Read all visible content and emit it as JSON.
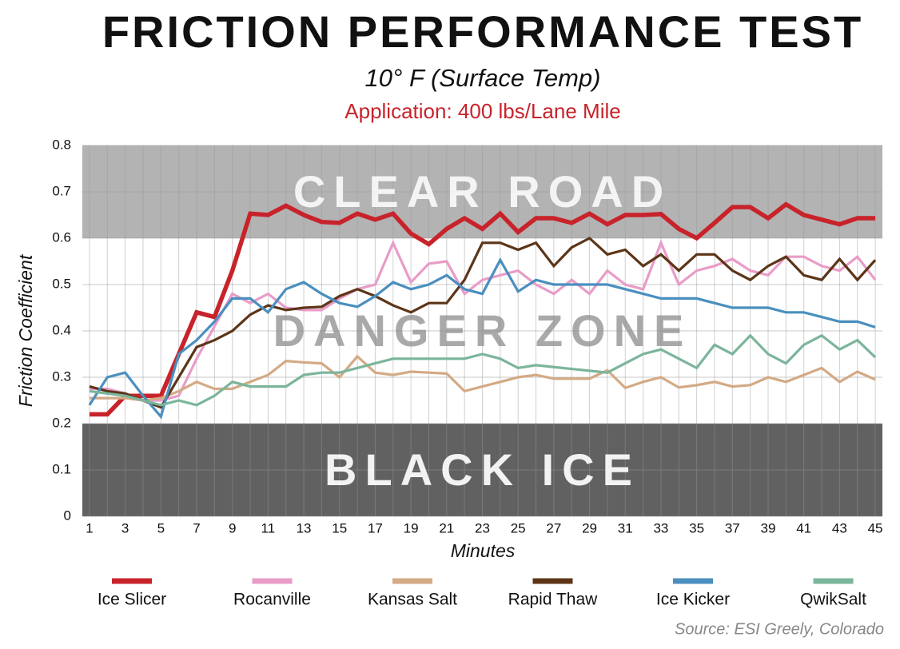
{
  "chart_data": {
    "type": "line",
    "title": "FRICTION PERFORMANCE TEST",
    "subtitle": "10° F (Surface Temp)",
    "annotation": "Application: 400 lbs/Lane Mile",
    "x_label": "Minutes",
    "y_label": "Friction Coefficient",
    "source": "Source: ESI Greely, Colorado",
    "x": [
      1,
      2,
      3,
      4,
      5,
      6,
      7,
      8,
      9,
      10,
      11,
      12,
      13,
      14,
      15,
      16,
      17,
      18,
      19,
      20,
      21,
      22,
      23,
      24,
      25,
      26,
      27,
      28,
      29,
      30,
      31,
      32,
      33,
      34,
      35,
      36,
      37,
      38,
      39,
      40,
      41,
      42,
      43,
      44,
      45
    ],
    "xlim": [
      0.6,
      45.4
    ],
    "xticks": [
      1,
      3,
      5,
      7,
      9,
      11,
      13,
      15,
      17,
      19,
      21,
      23,
      25,
      27,
      29,
      31,
      33,
      35,
      37,
      39,
      41,
      43,
      45
    ],
    "ylim": [
      0,
      0.8
    ],
    "yticks": [
      0,
      0.1,
      0.2,
      0.3,
      0.4,
      0.5,
      0.6,
      0.7,
      0.8
    ],
    "grid": true,
    "zones": [
      {
        "label": "CLEAR ROAD",
        "from": 0.6,
        "to": 0.8,
        "color": "#b3b3b3",
        "label_color": "rgba(255,255,255,0.85)"
      },
      {
        "label": "DANGER ZONE",
        "from": 0.2,
        "to": 0.6,
        "color": "#ffffff",
        "label_color": "rgba(140,140,140,0.75)"
      },
      {
        "label": "BLACK ICE",
        "from": 0,
        "to": 0.2,
        "color": "#616161",
        "label_color": "rgba(255,255,255,0.92)"
      }
    ],
    "series": [
      {
        "name": "Ice Slicer",
        "color": "#c8232b",
        "values": [
          0.22,
          0.22,
          0.26,
          0.26,
          0.26,
          0.35,
          0.44,
          0.43,
          0.53,
          0.653,
          0.65,
          0.67,
          0.65,
          0.635,
          0.633,
          0.653,
          0.64,
          0.653,
          0.61,
          0.587,
          0.62,
          0.643,
          0.62,
          0.653,
          0.613,
          0.643,
          0.643,
          0.633,
          0.653,
          0.63,
          0.65,
          0.65,
          0.652,
          0.62,
          0.6,
          0.633,
          0.667,
          0.667,
          0.643,
          0.673,
          0.65,
          0.64,
          0.63,
          0.643,
          0.643
        ]
      },
      {
        "name": "Rocanville",
        "color": "#e99cc8",
        "values": [
          0.275,
          0.275,
          0.265,
          0.25,
          0.25,
          0.26,
          0.34,
          0.41,
          0.48,
          0.46,
          0.48,
          0.45,
          0.445,
          0.445,
          0.47,
          0.49,
          0.5,
          0.59,
          0.505,
          0.545,
          0.55,
          0.48,
          0.51,
          0.52,
          0.53,
          0.5,
          0.48,
          0.51,
          0.48,
          0.53,
          0.5,
          0.49,
          0.59,
          0.5,
          0.53,
          0.54,
          0.555,
          0.53,
          0.52,
          0.56,
          0.56,
          0.54,
          0.53,
          0.56,
          0.51
        ]
      },
      {
        "name": "Kansas Salt",
        "color": "#d3aa86",
        "values": [
          0.255,
          0.255,
          0.255,
          0.25,
          0.255,
          0.27,
          0.29,
          0.275,
          0.275,
          0.29,
          0.305,
          0.335,
          0.332,
          0.33,
          0.3,
          0.345,
          0.31,
          0.305,
          0.312,
          0.31,
          0.308,
          0.27,
          0.28,
          0.29,
          0.3,
          0.305,
          0.297,
          0.297,
          0.297,
          0.315,
          0.277,
          0.29,
          0.3,
          0.278,
          0.283,
          0.29,
          0.28,
          0.283,
          0.3,
          0.29,
          0.305,
          0.32,
          0.29,
          0.312,
          0.295
        ]
      },
      {
        "name": "Rapid Thaw",
        "color": "#5c3518",
        "values": [
          0.28,
          0.27,
          0.265,
          0.25,
          0.235,
          0.3,
          0.365,
          0.38,
          0.4,
          0.435,
          0.455,
          0.445,
          0.45,
          0.452,
          0.475,
          0.49,
          0.475,
          0.455,
          0.44,
          0.46,
          0.46,
          0.51,
          0.59,
          0.59,
          0.575,
          0.59,
          0.54,
          0.58,
          0.6,
          0.565,
          0.575,
          0.54,
          0.565,
          0.53,
          0.565,
          0.565,
          0.53,
          0.51,
          0.54,
          0.56,
          0.52,
          0.51,
          0.555,
          0.51,
          0.553
        ]
      },
      {
        "name": "Ice Kicker",
        "color": "#4a8fbf",
        "values": [
          0.24,
          0.3,
          0.31,
          0.26,
          0.215,
          0.35,
          0.38,
          0.42,
          0.47,
          0.47,
          0.44,
          0.49,
          0.505,
          0.48,
          0.46,
          0.452,
          0.475,
          0.505,
          0.49,
          0.5,
          0.52,
          0.49,
          0.48,
          0.553,
          0.485,
          0.51,
          0.5,
          0.5,
          0.5,
          0.5,
          0.49,
          0.48,
          0.47,
          0.47,
          0.47,
          0.46,
          0.45,
          0.45,
          0.45,
          0.44,
          0.44,
          0.43,
          0.42,
          0.42,
          0.408
        ]
      },
      {
        "name": "QwikSalt",
        "color": "#7bb59b",
        "values": [
          0.27,
          0.265,
          0.26,
          0.25,
          0.24,
          0.25,
          0.24,
          0.26,
          0.29,
          0.28,
          0.28,
          0.28,
          0.305,
          0.31,
          0.31,
          0.32,
          0.33,
          0.34,
          0.34,
          0.34,
          0.34,
          0.34,
          0.35,
          0.34,
          0.32,
          0.326,
          0.322,
          0.318,
          0.314,
          0.31,
          0.33,
          0.35,
          0.36,
          0.34,
          0.32,
          0.37,
          0.35,
          0.39,
          0.35,
          0.33,
          0.37,
          0.39,
          0.36,
          0.38,
          0.343
        ]
      }
    ]
  }
}
